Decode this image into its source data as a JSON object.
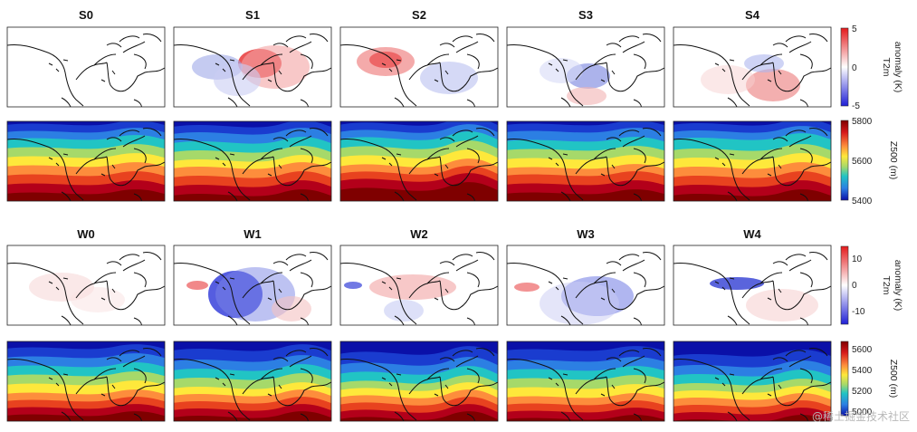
{
  "chart_data": {
    "type": "heatmap",
    "summer": {
      "panels": [
        "S0",
        "S1",
        "S2",
        "S3",
        "S4"
      ],
      "t2m_colorbar": {
        "label_line1": "T2m",
        "label_line2": "anomaly (K)",
        "ticks": [
          "5",
          "0",
          "-5"
        ],
        "range": [
          -5,
          5
        ]
      },
      "z500_colorbar": {
        "label": "Z500 (m)",
        "ticks": [
          "5800",
          "5600",
          "5400"
        ],
        "range": [
          5400,
          5800
        ]
      }
    },
    "winter": {
      "panels": [
        "W0",
        "W1",
        "W2",
        "W3",
        "W4"
      ],
      "t2m_colorbar": {
        "label_line1": "T2m",
        "label_line2": "anomaly (K)",
        "ticks": [
          "10",
          "0",
          "-10"
        ],
        "range": [
          -15,
          15
        ]
      },
      "z500_colorbar": {
        "label": "Z500 (m)",
        "ticks": [
          "5600",
          "5400",
          "5200",
          "5000"
        ],
        "range": [
          5000,
          5700
        ]
      }
    }
  },
  "watermark": "@稀土掘金技术社区"
}
